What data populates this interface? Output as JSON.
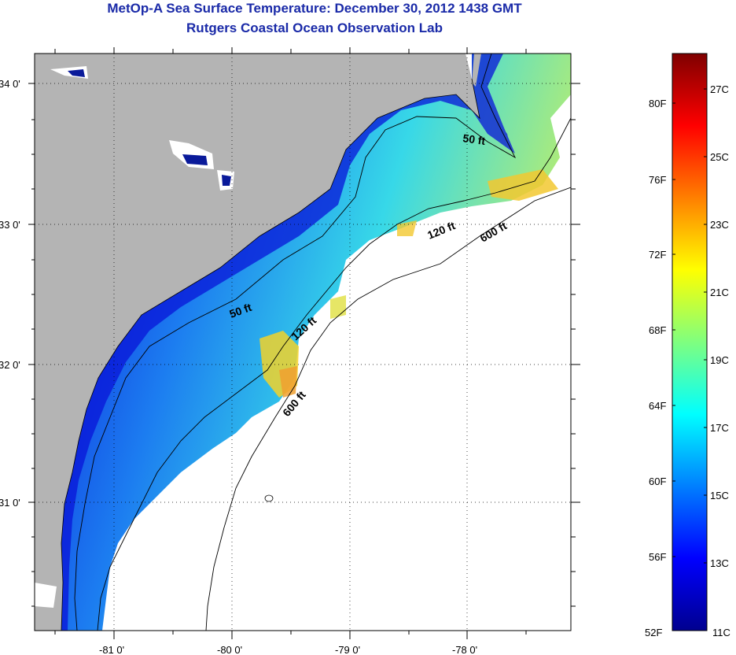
{
  "title": "MetOp-A Sea Surface Temperature:  December 30, 2012 1438 GMT",
  "subtitle": "Rutgers Coastal Ocean Observation Lab",
  "map": {
    "lat_labels": [
      "34 0'",
      "33 0'",
      "32 0'",
      "31 0'"
    ],
    "lon_labels": [
      "-81 0'",
      "-80 0'",
      "-79 0'",
      "-78 0'"
    ],
    "contour_labels": {
      "c50a": "50 ft",
      "c50b": "50 ft",
      "c120a": "120 ft",
      "c120b": "120 ft",
      "c600a": "600 ft",
      "c600b": "600 ft"
    },
    "colors": {
      "land": "#b4b4b4",
      "no_data": "#ffffff"
    }
  },
  "colorbar": {
    "fahrenheit_labels": [
      "80F",
      "76F",
      "72F",
      "68F",
      "64F",
      "60F",
      "56F",
      "52F"
    ],
    "celsius_labels": [
      "27C",
      "25C",
      "23C",
      "21C",
      "19C",
      "17C",
      "15C",
      "13C",
      "11C"
    ],
    "range_celsius": [
      11,
      28
    ],
    "stops": [
      "#00008f",
      "#0000ff",
      "#007fff",
      "#00ffff",
      "#7fff7f",
      "#ffff00",
      "#ff7f00",
      "#ff0000",
      "#7f0000"
    ]
  }
}
